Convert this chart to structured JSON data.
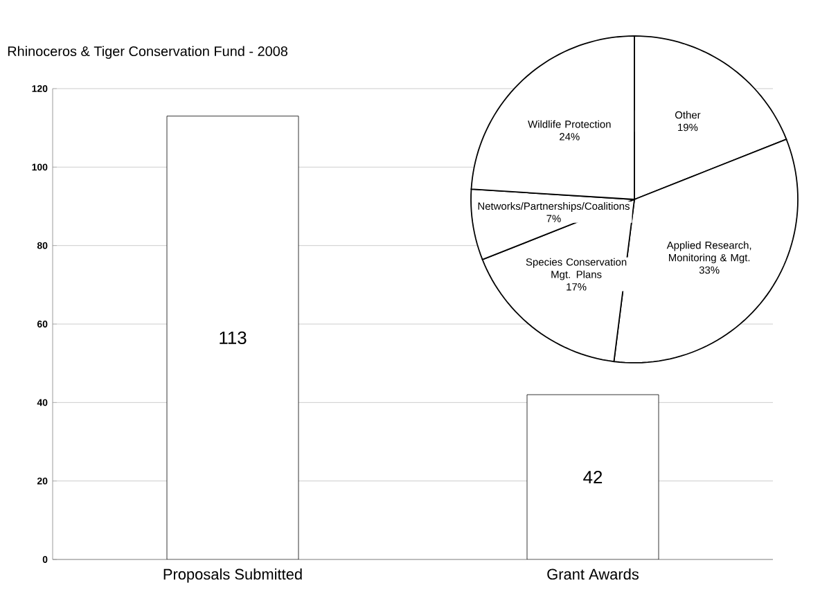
{
  "chart_data": [
    {
      "type": "bar",
      "title": "Rhinoceros & Tiger Conservation Fund - 2008",
      "categories": [
        "Proposals Submitted",
        "Grant Awards"
      ],
      "values": [
        113,
        42
      ],
      "color": "#ffffff",
      "ylim": [
        0,
        120
      ],
      "yticks": [
        0,
        20,
        40,
        60,
        80,
        100,
        120
      ],
      "grid": "y",
      "data_labels": true
    },
    {
      "type": "pie",
      "categories": [
        "Other",
        "Applied Research, Monitoring & Mgt.",
        "Species Conservation Mgt. Plans",
        "Networks/Partnerships/Coalitions",
        "Wildlife Protection"
      ],
      "values": [
        19,
        33,
        17,
        7,
        24
      ],
      "colors": [
        "#ffffff",
        "#ffffff",
        "#ffffff",
        "#ffffff",
        "#ffffff"
      ],
      "value_labels": [
        "19%",
        "33%",
        "17%",
        "7%",
        "24%"
      ]
    }
  ]
}
